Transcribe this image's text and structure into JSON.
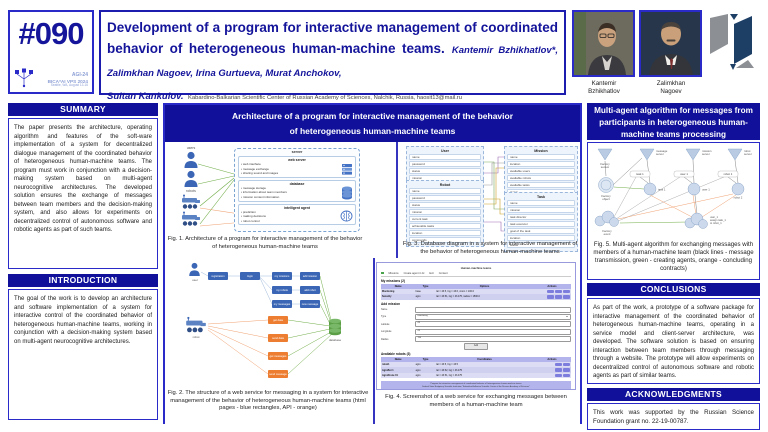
{
  "colors": {
    "navy_bar": "#10109b",
    "border_blue": "#2a2ac8",
    "title_navy": "#14149b",
    "node_blue": "#3b66b5",
    "api_orange": "#ed7d31",
    "create_green": "#70ad47",
    "lavender": "#b4b4ec"
  },
  "header": {
    "badge": "#090",
    "conf_lines": [
      "AGI-24",
      "BICA*AI VPS 2024",
      "Seattle, WA, August 13-16"
    ],
    "title": "Development of a program for interactive management of coordinated behavior of heterogeneous human-machine teams.",
    "authors_part1": "Kantemir Bzhikhatlov*, Zalimkhan Nagoev, Irina Gurtueva, Murat Anchokov,",
    "authors_part2": "Sultan Kankulov.",
    "affiliation": "Kabardino-Balkarian Scientific Center of Russian Academy of Sciences, Nalchik, Russia, haosit13@mail.ru",
    "people": [
      {
        "name": "Kantemir\nBzhikhatlov"
      },
      {
        "name": "Zalimkhan\nNagoev"
      }
    ]
  },
  "left": {
    "summary_heading": "SUMMARY",
    "summary_text": "The paper presents the architecture, operating algorithm and features of the soft-ware implementation of a system for decentralized dialogue management of the coordinated behavior of heterogeneous human-machine teams. The program must work in conjunction with a decision-making system based on multi-agent neurocognitive architectures. The developed solution ensures the exchange of messages between team members and the decision-making system, and also allows for experiments on decentralized control of autonomous software and robotic agents as part of such teams.",
    "introduction_heading": "INTRODUCTION",
    "introduction_text": "The goal of the work is to develop an architecture and software implementation of a system for interactive control of the coordinated behavior of heterogeneous human-machine teams, working in conjunction with a decision-making system based on multi-agent neurocognitive architectures."
  },
  "center": {
    "heading": "Architecture of a program for interactive management of the behavior\nof heterogeneous human-machine teams",
    "fig1": {
      "users_label": "users",
      "robots_label": "robots",
      "server_label": "server",
      "blocks": [
        {
          "title": "web server",
          "items": [
            "web interface",
            "message exchange",
            "sharing sound and images"
          ]
        },
        {
          "title": "database",
          "items": [
            "message storage",
            "information about team members",
            "mission context information"
          ]
        },
        {
          "title": "intelligent agent",
          "items": [
            "prediction",
            "making decisions",
            "robot control"
          ]
        }
      ],
      "caption": "Fig. 1. Architecture of a program for interactive management of the behavior of heterogeneous human-machine teams"
    },
    "fig2": {
      "user_label": "user",
      "robot_label": "robot",
      "database_label": "database",
      "html_nodes": [
        "registration",
        "login",
        "my missions",
        "my robots",
        "my messages",
        "add mission",
        "add robot",
        "new message"
      ],
      "api_nodes": [
        "get data",
        "send data",
        "get messages",
        "send message"
      ],
      "caption": "Fig. 2. The structure of a web service for messaging in a system for interactive management of the behavior of heterogeneous human-machine teams (html pages - blue rectangles, API - orange)"
    },
    "fig3": {
      "tables": [
        {
          "name": "User",
          "fields": [
            "name",
            "password",
            "status",
            "mission"
          ]
        },
        {
          "name": "Robot",
          "fields": [
            "name",
            "password",
            "status",
            "mission",
            "current task",
            "achievable tasks",
            "location",
            "commands"
          ]
        },
        {
          "name": "Mission",
          "fields": [
            "name",
            "location",
            "available users",
            "available robots",
            "available tasks",
            "status"
          ]
        },
        {
          "name": "Task",
          "fields": [
            "name",
            "mission",
            "task director",
            "task executor",
            "goal of the task",
            "location",
            "status"
          ]
        }
      ],
      "caption": "Fig. 3. Database diagram in a system for interactive management of the behavior of heterogeneous human-machine teams"
    },
    "fig4": {
      "page_title": "Human-machine teams",
      "nav_items": [
        "Missions",
        "Create agent in AI",
        "Exit",
        "Content"
      ],
      "my_missions_heading": "My missions (2)",
      "missions_table": {
        "headers": [
          "Name",
          "Type",
          "Options",
          "Actions"
        ],
        "rows": [
          {
            "name": "Monitoring",
            "type": "base",
            "options": "lat = 43.5, lng = 43.6, zoom = 100.0"
          },
          {
            "name": "Security",
            "type": "agro",
            "options": "lat = 43.51, lng = 43.475, radius = 1500.0"
          }
        ]
      },
      "add_mission_heading": "Add mission",
      "form": {
        "rows": [
          {
            "label": "Name",
            "value": ""
          },
          {
            "label": "Type",
            "value": "monitoring"
          },
          {
            "label": "Latitude",
            "value": "43"
          },
          {
            "label": "Longitude",
            "value": "43"
          },
          {
            "label": "Radius",
            "value": "150"
          }
        ],
        "submit_label": "Add"
      },
      "robots_heading": "Available robots (3)",
      "robots_table": {
        "headers": [
          "Name",
          "Type",
          "Coordinates",
          "Actions"
        ],
        "rows": [
          {
            "name": "robot1",
            "type": "agro",
            "coordinates": "lat = 43.5, lng = 43.5"
          },
          {
            "name": "AgroBot 1",
            "type": "agro",
            "coordinates": "lat = 43.52, lng = 43.475"
          },
          {
            "name": "AgroDrone 01",
            "type": "agro",
            "coordinates": "lat = 43.51, lng = 43.475"
          }
        ]
      },
      "footer": "Program for interactive management of coordinated behavior of heterogeneous human-machine teams\nFederal State Budgetary Scientific Institution \"Kabardino-Balkarian Scientific Center of the Russian Academy of Sciences\"\nNalchik, 2024",
      "caption": "Fig. 4. Screenshot of a web service for exchanging messages between members of a human-machine team"
    }
  },
  "right": {
    "heading": "Multi-agent algorithm for messages from\nparticipants in heterogeneous human-\nmachine teams processing",
    "fig5": {
      "factory_sensor": "Factory\nsensor",
      "factory_object": "Factory\nobject",
      "factory_event": "Factory\nevent",
      "servers": [
        "message\nserver",
        "mission\nserver",
        "robot\nserver"
      ],
      "tags": [
        "task 1",
        "user 1",
        "robot 1"
      ],
      "circles": [
        "task 1",
        "user 1",
        "robot 2"
      ],
      "contract": "user_1\nassign task_1\nto robot_1",
      "caption": "Fig. 5. Multi-agent algorithm for exchanging messages with members of a human-machine team (black lines - message transmission, green - creating agents, orange - concluding contracts)"
    },
    "conclusions_heading": "CONCLUSIONS",
    "conclusions_text": "As part of the work, a prototype of a software package for interactive management of the coordinated behavior of heterogeneous human-machine teams, operating in a service model and client-server architecture, was developed. The software solution is based on ensuring interaction between team members through messaging through a website. The prototype will allow experiments on decentralized control of autonomous software and robotic agents as part of similar teams.",
    "acknowledgments_heading": "ACKNOWLEDGMENTS",
    "acknowledgments_text": "This work was supported by the Russian Science Foundation grant no. 22-19-00787."
  }
}
